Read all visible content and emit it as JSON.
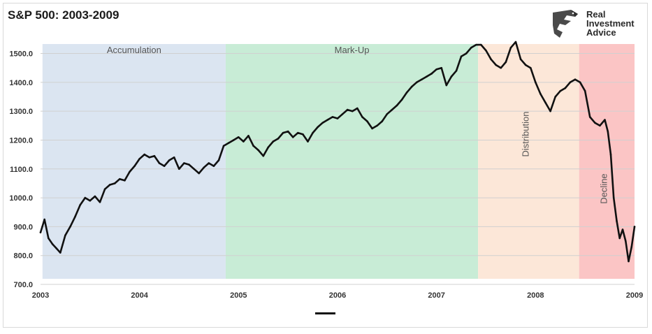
{
  "chart_data": {
    "type": "line",
    "title": "S&P 500: 2003-2009",
    "xlabel": "",
    "ylabel": "",
    "x_range": [
      2003,
      2009
    ],
    "ylim": [
      700,
      1540
    ],
    "x_ticks": [
      "2003",
      "2004",
      "2005",
      "2006",
      "2007",
      "2008",
      "2009"
    ],
    "y_ticks": [
      "700.0",
      "800.0",
      "900.0",
      "1000.0",
      "1100.0",
      "1200.0",
      "1300.0",
      "1400.0",
      "1500.0"
    ],
    "grid": true,
    "phases": [
      {
        "label": "Accumulation",
        "start": 2003.02,
        "end": 2004.87,
        "color": "#dbe5f1",
        "label_orientation": "horizontal"
      },
      {
        "label": "Mark-Up",
        "start": 2004.87,
        "end": 2007.42,
        "color": "#c8ecd6",
        "label_orientation": "horizontal"
      },
      {
        "label": "Distribution",
        "start": 2007.42,
        "end": 2008.44,
        "color": "#fce7d8",
        "label_orientation": "vertical"
      },
      {
        "label": "Decline",
        "start": 2008.44,
        "end": 2009.0,
        "color": "#fbc5c5",
        "label_orientation": "vertical"
      }
    ],
    "series": [
      {
        "color": "#111111",
        "x": [
          2003.0,
          2003.04,
          2003.08,
          2003.12,
          2003.16,
          2003.2,
          2003.25,
          2003.3,
          2003.35,
          2003.4,
          2003.45,
          2003.5,
          2003.55,
          2003.6,
          2003.65,
          2003.7,
          2003.75,
          2003.8,
          2003.85,
          2003.9,
          2003.95,
          2004.0,
          2004.05,
          2004.1,
          2004.15,
          2004.2,
          2004.25,
          2004.3,
          2004.35,
          2004.4,
          2004.45,
          2004.5,
          2004.55,
          2004.6,
          2004.65,
          2004.7,
          2004.75,
          2004.8,
          2004.85,
          2004.9,
          2004.95,
          2005.0,
          2005.05,
          2005.1,
          2005.15,
          2005.2,
          2005.25,
          2005.3,
          2005.35,
          2005.4,
          2005.45,
          2005.5,
          2005.55,
          2005.6,
          2005.65,
          2005.7,
          2005.75,
          2005.8,
          2005.85,
          2005.9,
          2005.95,
          2006.0,
          2006.05,
          2006.1,
          2006.15,
          2006.2,
          2006.25,
          2006.3,
          2006.35,
          2006.4,
          2006.45,
          2006.5,
          2006.55,
          2006.6,
          2006.65,
          2006.7,
          2006.75,
          2006.8,
          2006.85,
          2006.9,
          2006.95,
          2007.0,
          2007.05,
          2007.1,
          2007.15,
          2007.2,
          2007.25,
          2007.3,
          2007.35,
          2007.4,
          2007.45,
          2007.5,
          2007.55,
          2007.6,
          2007.65,
          2007.7,
          2007.75,
          2007.8,
          2007.85,
          2007.9,
          2007.95,
          2008.0,
          2008.05,
          2008.1,
          2008.15,
          2008.2,
          2008.25,
          2008.3,
          2008.35,
          2008.4,
          2008.45,
          2008.5,
          2008.55,
          2008.6,
          2008.65,
          2008.7,
          2008.73,
          2008.76,
          2008.79,
          2008.82,
          2008.85,
          2008.88,
          2008.91,
          2008.94,
          2008.97,
          2009.0
        ],
        "values": [
          880,
          925,
          860,
          840,
          825,
          810,
          870,
          900,
          935,
          975,
          1000,
          990,
          1005,
          985,
          1030,
          1045,
          1050,
          1065,
          1060,
          1090,
          1110,
          1135,
          1150,
          1140,
          1145,
          1120,
          1110,
          1130,
          1140,
          1100,
          1120,
          1115,
          1100,
          1085,
          1105,
          1120,
          1110,
          1130,
          1180,
          1190,
          1200,
          1210,
          1195,
          1215,
          1180,
          1165,
          1145,
          1175,
          1195,
          1205,
          1225,
          1230,
          1210,
          1225,
          1220,
          1195,
          1225,
          1245,
          1260,
          1270,
          1280,
          1275,
          1290,
          1305,
          1300,
          1310,
          1280,
          1265,
          1240,
          1250,
          1265,
          1290,
          1305,
          1320,
          1340,
          1365,
          1385,
          1400,
          1410,
          1420,
          1430,
          1445,
          1450,
          1390,
          1420,
          1440,
          1490,
          1500,
          1520,
          1530,
          1530,
          1510,
          1480,
          1460,
          1450,
          1470,
          1520,
          1540,
          1480,
          1460,
          1450,
          1400,
          1360,
          1330,
          1300,
          1350,
          1370,
          1380,
          1400,
          1410,
          1400,
          1370,
          1280,
          1260,
          1250,
          1270,
          1230,
          1150,
          1000,
          920,
          860,
          890,
          850,
          780,
          830,
          900
        ]
      }
    ]
  },
  "logo": {
    "line1": "Real",
    "line2": "Investment",
    "line3": "Advice",
    "icon": "eagle-logo-icon"
  }
}
